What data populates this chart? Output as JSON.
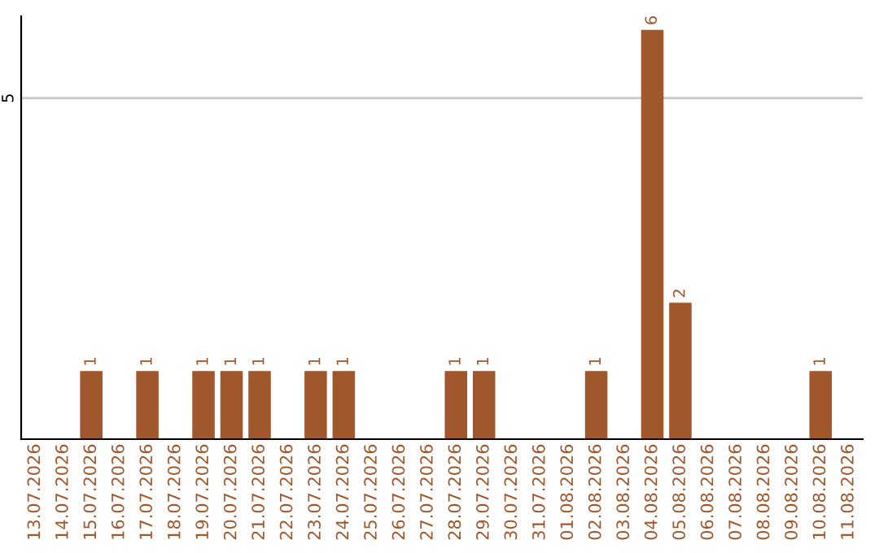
{
  "chart_data": {
    "type": "bar",
    "categories": [
      "13.07.2026",
      "14.07.2026",
      "15.07.2026",
      "16.07.2026",
      "17.07.2026",
      "18.07.2026",
      "19.07.2026",
      "20.07.2026",
      "21.07.2026",
      "22.07.2026",
      "23.07.2026",
      "24.07.2026",
      "25.07.2026",
      "26.07.2026",
      "27.07.2026",
      "28.07.2026",
      "29.07.2026",
      "30.07.2026",
      "31.07.2026",
      "01.08.2026",
      "02.08.2026",
      "03.08.2026",
      "04.08.2026",
      "05.08.2026",
      "06.08.2026",
      "07.08.2026",
      "08.08.2026",
      "09.08.2026",
      "10.08.2026",
      "11.08.2026"
    ],
    "values": [
      0,
      0,
      1,
      0,
      1,
      0,
      1,
      1,
      1,
      0,
      1,
      1,
      0,
      0,
      0,
      1,
      1,
      0,
      0,
      0,
      1,
      0,
      6,
      2,
      0,
      0,
      0,
      0,
      1,
      0
    ],
    "color": "#a0572b",
    "value_labels": [
      null,
      null,
      "1",
      null,
      "1",
      null,
      "1",
      "1",
      "1",
      null,
      "1",
      "1",
      null,
      null,
      null,
      "1",
      "1",
      null,
      null,
      null,
      "1",
      null,
      "6",
      "2",
      null,
      null,
      null,
      null,
      "1",
      null
    ],
    "ylim": [
      0,
      6.2
    ],
    "yticks": [
      5
    ],
    "grid": "y"
  }
}
